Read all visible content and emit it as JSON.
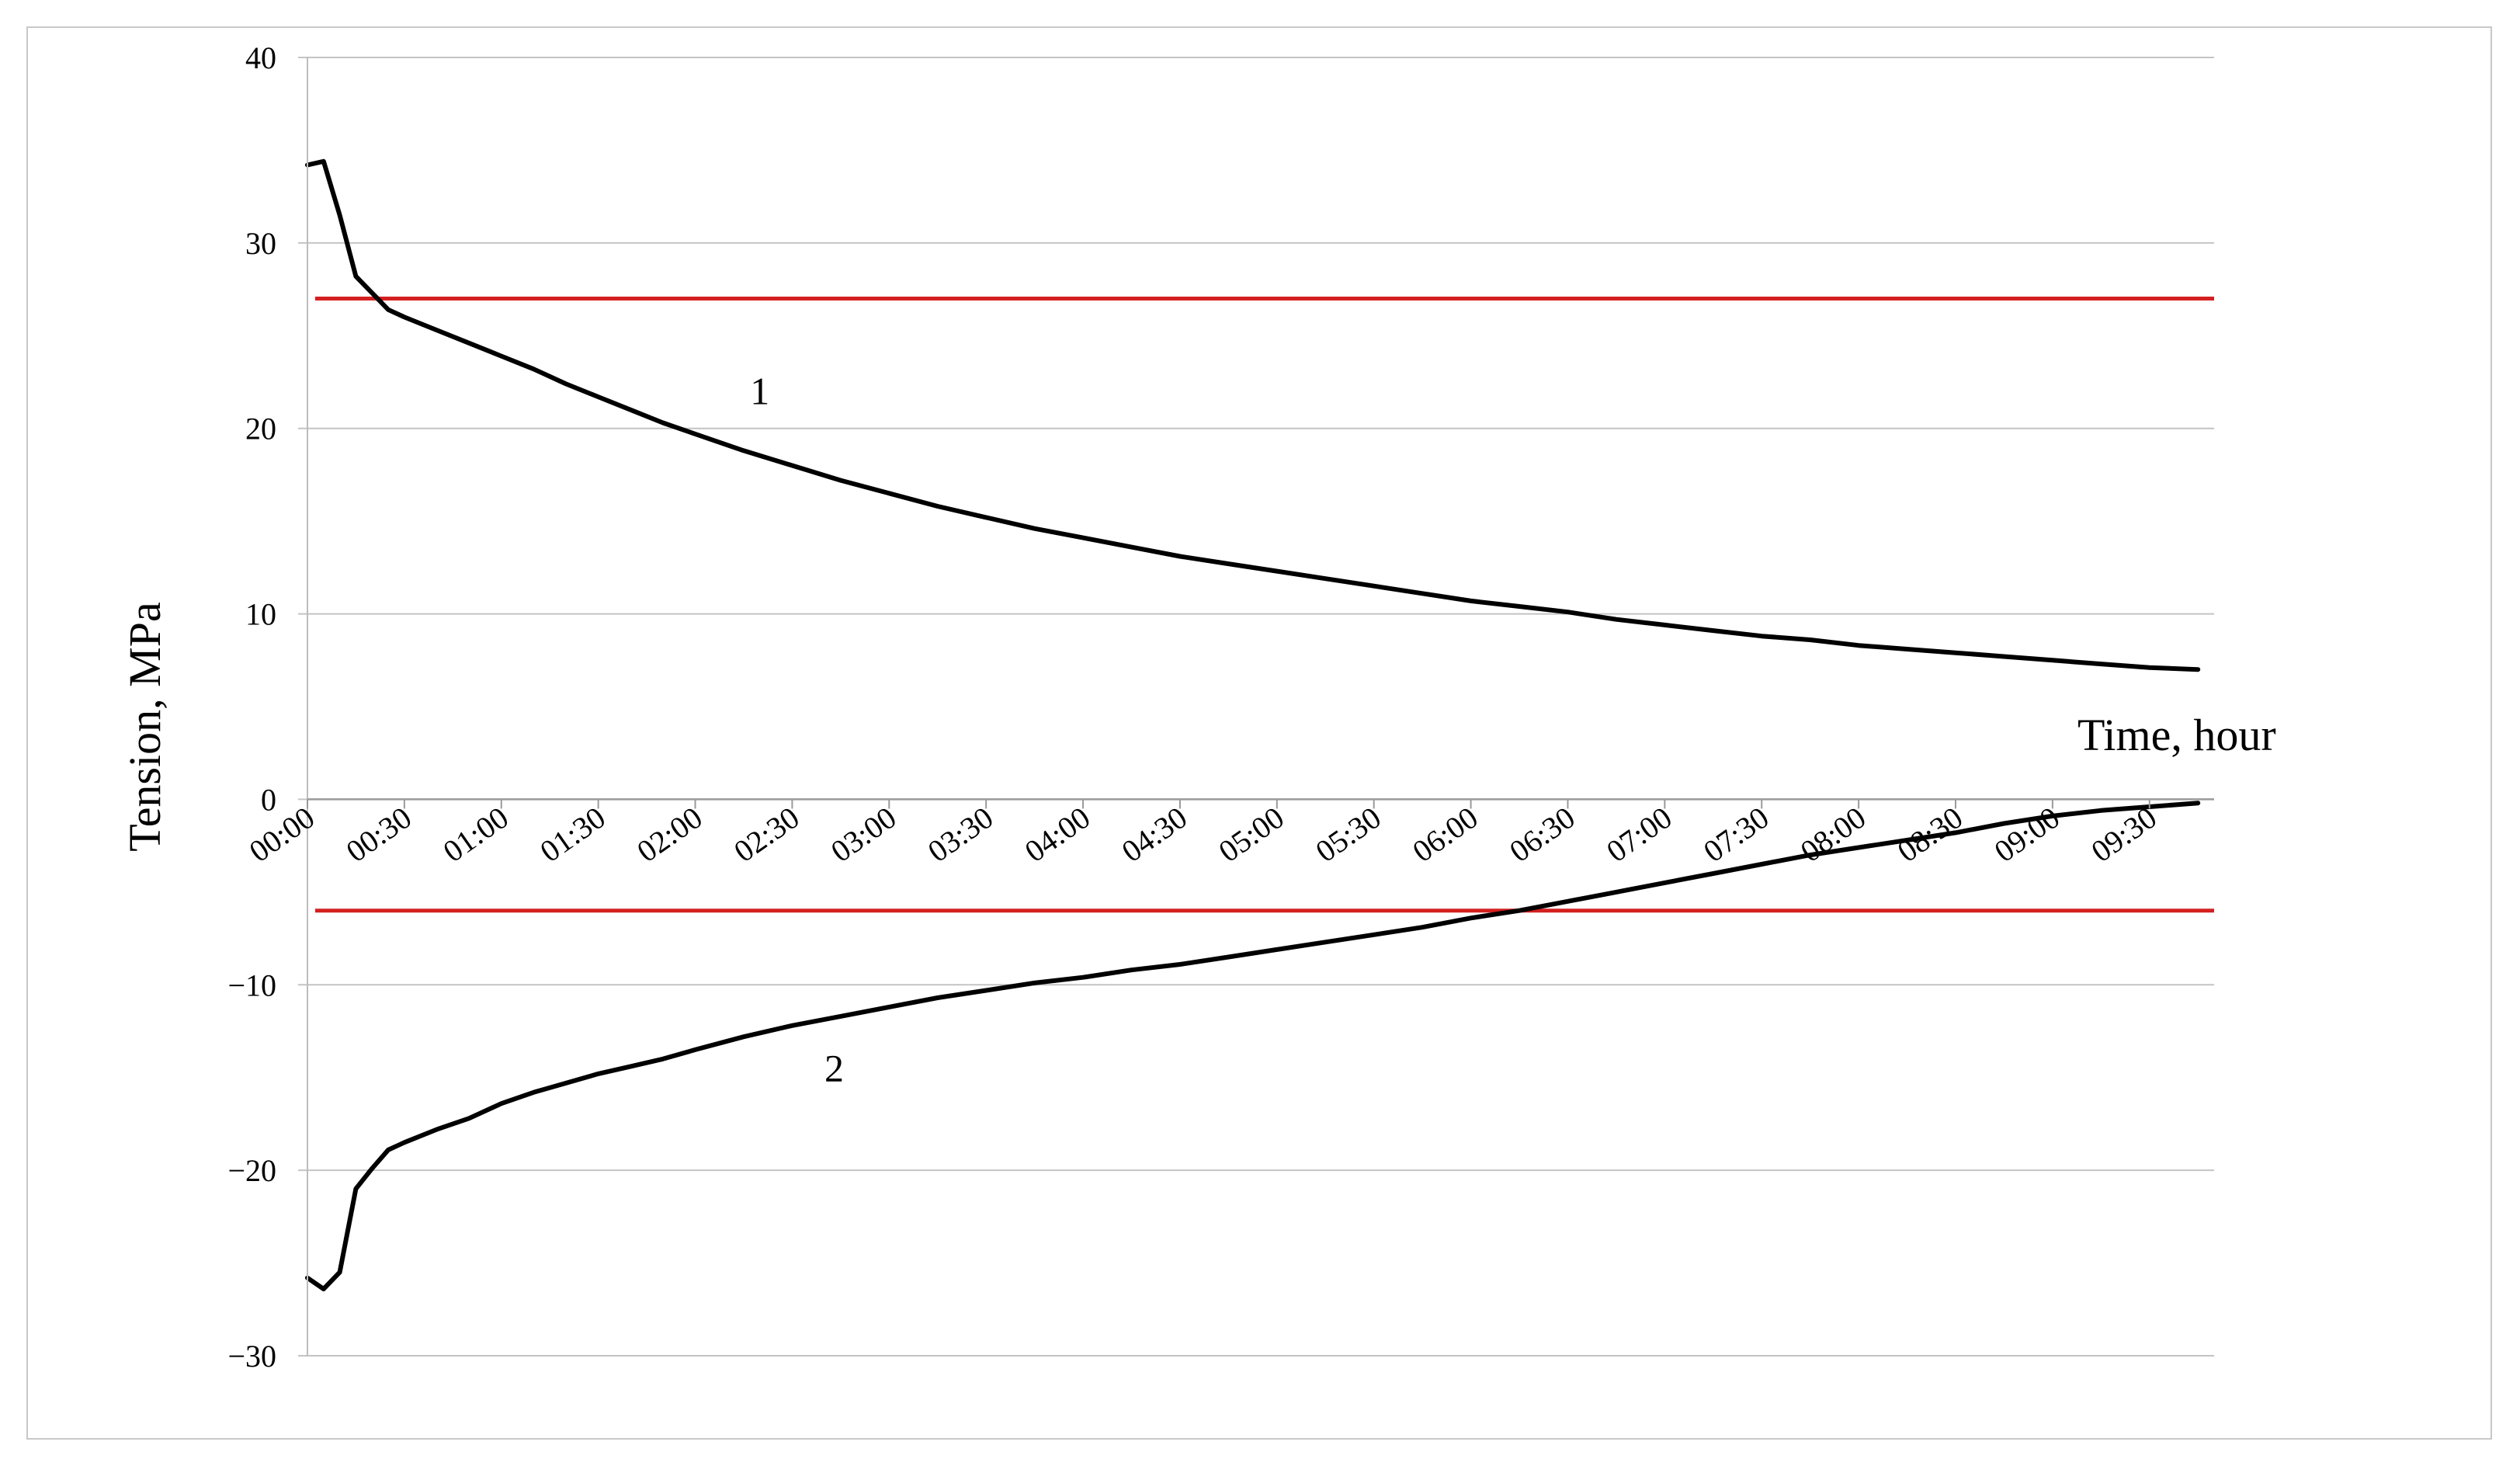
{
  "chart_data": {
    "type": "line",
    "title": "",
    "xlabel": "Time, hour",
    "ylabel": "Tension, MPa",
    "ylim": [
      -30,
      40
    ],
    "yticks": [
      {
        "value": 40,
        "label": "40"
      },
      {
        "value": 30,
        "label": "30"
      },
      {
        "value": 20,
        "label": "20"
      },
      {
        "value": 10,
        "label": "10"
      },
      {
        "value": 0,
        "label": "0"
      },
      {
        "value": -10,
        "label": "−10"
      },
      {
        "value": -20,
        "label": "−20"
      },
      {
        "value": -30,
        "label": "−30"
      }
    ],
    "xlim_minutes": [
      0,
      590
    ],
    "xticks": [
      "00:00",
      "00:30",
      "01:00",
      "01:30",
      "02:00",
      "02:30",
      "03:00",
      "03:30",
      "04:00",
      "04:30",
      "05:00",
      "05:30",
      "06:00",
      "06:30",
      "07:00",
      "07:30",
      "08:00",
      "08:30",
      "09:00",
      "09:30"
    ],
    "grid": true,
    "series": [
      {
        "name": "1",
        "color": "#000000",
        "x": [
          "00:00",
          "00:05",
          "00:10",
          "00:15",
          "00:20",
          "00:25",
          "00:30",
          "00:40",
          "00:50",
          "01:00",
          "01:10",
          "01:20",
          "01:30",
          "01:40",
          "01:50",
          "02:00",
          "02:15",
          "02:30",
          "02:45",
          "03:00",
          "03:15",
          "03:30",
          "03:45",
          "04:00",
          "04:15",
          "04:30",
          "04:45",
          "05:00",
          "05:15",
          "05:30",
          "05:45",
          "06:00",
          "06:15",
          "06:30",
          "06:45",
          "07:00",
          "07:15",
          "07:30",
          "07:45",
          "08:00",
          "08:15",
          "08:30",
          "08:45",
          "09:00",
          "09:15",
          "09:30",
          "09:45"
        ],
        "values": [
          34.2,
          34.4,
          31.5,
          28.2,
          27.3,
          26.4,
          26.0,
          25.3,
          24.6,
          23.9,
          23.2,
          22.4,
          21.7,
          21.0,
          20.3,
          19.7,
          18.8,
          18.0,
          17.2,
          16.5,
          15.8,
          15.2,
          14.6,
          14.1,
          13.6,
          13.1,
          12.7,
          12.3,
          11.9,
          11.5,
          11.1,
          10.7,
          10.4,
          10.1,
          9.7,
          9.4,
          9.1,
          8.8,
          8.6,
          8.3,
          8.1,
          7.9,
          7.7,
          7.5,
          7.3,
          7.1,
          7.0
        ]
      },
      {
        "name": "2",
        "color": "#000000",
        "x": [
          "00:00",
          "00:05",
          "00:10",
          "00:15",
          "00:20",
          "00:25",
          "00:30",
          "00:40",
          "00:50",
          "01:00",
          "01:10",
          "01:20",
          "01:30",
          "01:40",
          "01:50",
          "02:00",
          "02:15",
          "02:30",
          "02:45",
          "03:00",
          "03:15",
          "03:30",
          "03:45",
          "04:00",
          "04:15",
          "04:30",
          "04:45",
          "05:00",
          "05:15",
          "05:30",
          "05:45",
          "06:00",
          "06:15",
          "06:30",
          "06:45",
          "07:00",
          "07:15",
          "07:30",
          "07:45",
          "08:00",
          "08:15",
          "08:30",
          "08:45",
          "09:00",
          "09:15",
          "09:30",
          "09:45"
        ],
        "values": [
          -25.8,
          -26.4,
          -25.5,
          -21.0,
          -19.9,
          -18.9,
          -18.5,
          -17.8,
          -17.2,
          -16.4,
          -15.8,
          -15.3,
          -14.8,
          -14.4,
          -14.0,
          -13.5,
          -12.8,
          -12.2,
          -11.7,
          -11.2,
          -10.7,
          -10.3,
          -9.9,
          -9.6,
          -9.2,
          -8.9,
          -8.5,
          -8.1,
          -7.7,
          -7.3,
          -6.9,
          -6.4,
          -6.0,
          -5.5,
          -5.0,
          -4.5,
          -4.0,
          -3.5,
          -3.0,
          -2.6,
          -2.2,
          -1.8,
          -1.3,
          -0.9,
          -0.6,
          -0.4,
          -0.2
        ]
      }
    ],
    "reference_lines": [
      {
        "value": 27,
        "color": "#d42020"
      },
      {
        "value": -6,
        "color": "#d42020"
      }
    ],
    "annotations": [
      {
        "text": "1",
        "x": "02:20",
        "y": 21.3
      },
      {
        "text": "2",
        "x": "02:43",
        "y": -15.2
      }
    ]
  }
}
